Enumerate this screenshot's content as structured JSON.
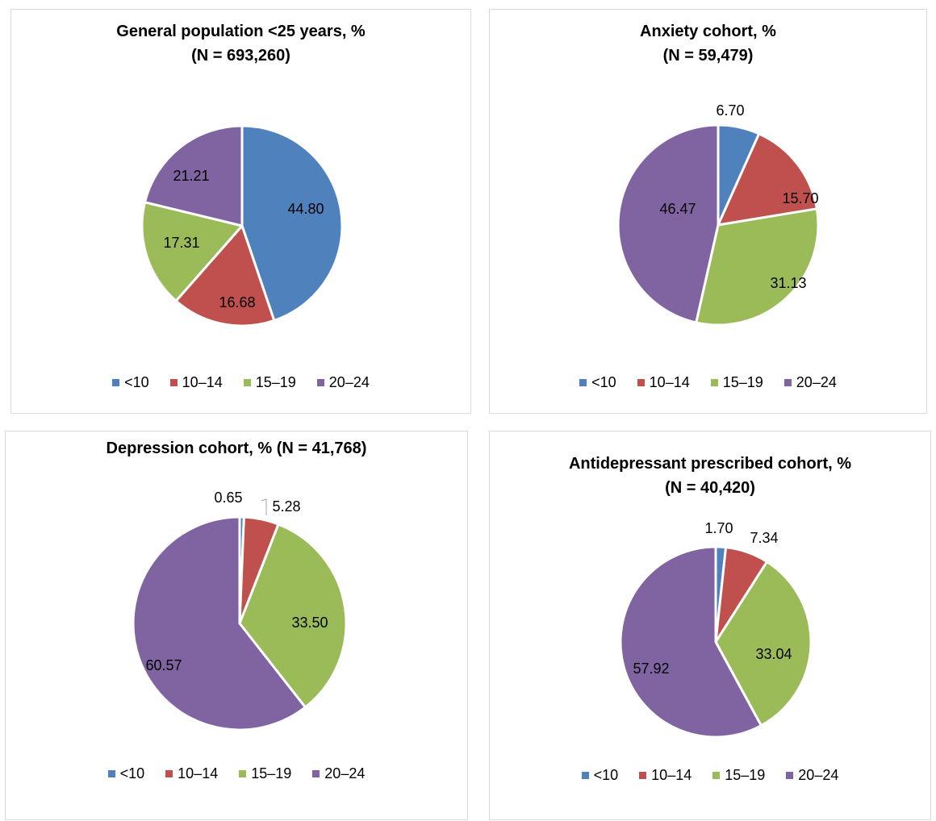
{
  "colors": {
    "lt10": "#4f81bd",
    "10-14": "#c0504d",
    "15-19": "#9bbb59",
    "20-24": "#8064a2",
    "slice_border": "#ffffff",
    "leader": "#a6a6a6"
  },
  "chart_data": [
    {
      "type": "pie",
      "title": [
        "General population <25 years, %",
        "(N = 693,260)"
      ],
      "categories": [
        "<10",
        "10–14",
        "15–19",
        "20–24"
      ],
      "values": [
        44.8,
        16.68,
        17.31,
        21.21
      ],
      "labels": [
        "44.80",
        "16.68",
        "17.31",
        "21.21"
      ],
      "legend": "bottom",
      "start": "12 o'clock, clockwise"
    },
    {
      "type": "pie",
      "title": [
        "Anxiety cohort, %",
        "(N = 59,479)"
      ],
      "categories": [
        "<10",
        "10–14",
        "15–19",
        "20–24"
      ],
      "values": [
        6.7,
        15.7,
        31.13,
        46.47
      ],
      "labels": [
        "6.70",
        "15.70",
        "31.13",
        "46.47"
      ],
      "legend": "bottom",
      "start": "12 o'clock, clockwise"
    },
    {
      "type": "pie",
      "title": [
        "Depression cohort, % (N = 41,768)"
      ],
      "categories": [
        "<10",
        "10–14",
        "15–19",
        "20–24"
      ],
      "values": [
        0.65,
        5.28,
        33.5,
        60.57
      ],
      "labels": [
        "0.65",
        "5.28",
        "33.50",
        "60.57"
      ],
      "legend": "bottom",
      "start": "12 o'clock, clockwise"
    },
    {
      "type": "pie",
      "title": [
        "Antidepressant prescribed cohort, %",
        "(N = 40,420)"
      ],
      "categories": [
        "<10",
        "10–14",
        "15–19",
        "20–24"
      ],
      "values": [
        1.7,
        7.34,
        33.04,
        57.92
      ],
      "labels": [
        "1.70",
        "7.34",
        "33.04",
        "57.92"
      ],
      "legend": "bottom",
      "start": "12 o'clock, clockwise"
    }
  ]
}
